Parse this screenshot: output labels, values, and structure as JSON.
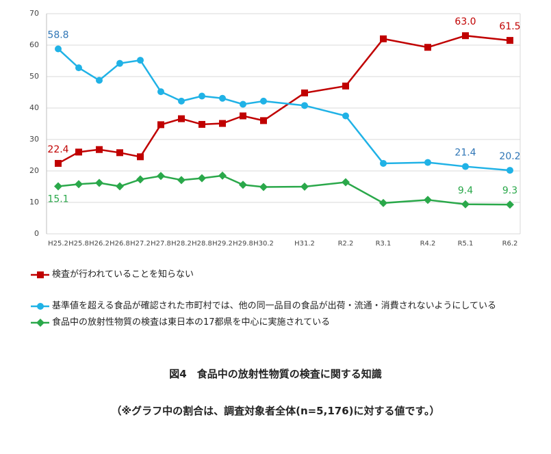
{
  "chart_data": {
    "type": "line",
    "title": "図4　食品中の放射性物質の検査に関する知識",
    "subtitle": "（※グラフ中の割合は、調査対象者全体(n=5,176)に対する値です。）",
    "categories": [
      "H25.2",
      "H25.8",
      "H26.2",
      "H26.8",
      "H27.2",
      "H27.8",
      "H28.2",
      "H28.8",
      "H29.2",
      "H29.8",
      "H30.2",
      "H31.2",
      "R2.2",
      "R3.1",
      "R4.2",
      "R5.1",
      "R6.2"
    ],
    "ylim": [
      0,
      70
    ],
    "yticks": [
      0,
      10,
      20,
      30,
      40,
      50,
      60,
      70
    ],
    "grid": true,
    "series": [
      {
        "name": "検査が行われていることを知らない",
        "color": "#c00000",
        "marker": "square",
        "values": [
          22.4,
          26.0,
          26.8,
          25.8,
          24.5,
          34.7,
          36.6,
          34.8,
          35.1,
          37.5,
          36.0,
          44.8,
          47.0,
          62.0,
          59.3,
          63.0,
          61.5
        ],
        "value_labels": [
          "22.4",
          null,
          null,
          null,
          null,
          null,
          null,
          null,
          null,
          null,
          null,
          null,
          null,
          null,
          null,
          "63.0",
          "61.5"
        ]
      },
      {
        "name": "基準値を超える食品が確認された市町村では、他の同一品目の食品が出荷・流通・消費されないようにしている",
        "color": "#20b2e6",
        "marker": "circle",
        "values": [
          58.8,
          52.8,
          48.8,
          54.2,
          55.2,
          45.2,
          42.2,
          43.8,
          43.1,
          41.2,
          42.2,
          40.8,
          37.5,
          22.4,
          22.7,
          21.4,
          20.2
        ],
        "value_labels": [
          "58.8",
          null,
          null,
          null,
          null,
          null,
          null,
          null,
          null,
          null,
          null,
          null,
          null,
          null,
          null,
          "21.4",
          "20.2"
        ]
      },
      {
        "name": "食品中の放射性物質の検査は東日本の17都県を中心に実施されている",
        "color": "#2aa84a",
        "marker": "diamond",
        "values": [
          15.1,
          15.8,
          16.2,
          15.1,
          17.3,
          18.4,
          17.1,
          17.7,
          18.5,
          15.6,
          14.9,
          15.0,
          16.4,
          9.8,
          10.8,
          9.4,
          9.3
        ],
        "value_labels": [
          "15.1",
          null,
          null,
          null,
          null,
          null,
          null,
          null,
          null,
          null,
          null,
          null,
          null,
          null,
          null,
          "9.4",
          "9.3"
        ]
      }
    ]
  }
}
